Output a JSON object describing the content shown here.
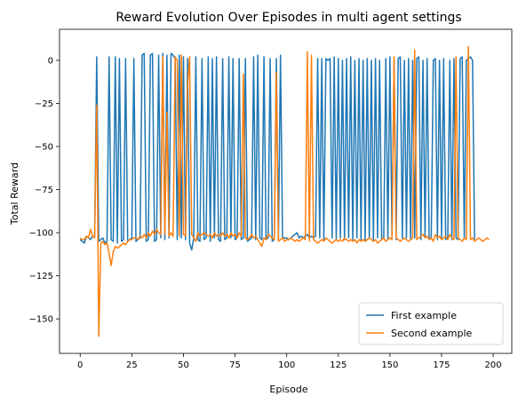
{
  "chart_data": {
    "type": "line",
    "title": "Reward Evolution Over Episodes in multi agent settings",
    "xlabel": "Episode",
    "ylabel": "Total Reward",
    "xlim": [
      -10,
      209
    ],
    "ylim": [
      -170,
      18
    ],
    "xticks": [
      0,
      25,
      50,
      75,
      100,
      125,
      150,
      175,
      200
    ],
    "yticks": [
      0,
      -25,
      -50,
      -75,
      -100,
      -125,
      -150
    ],
    "grid": false,
    "legend_position": "lower-right",
    "series": [
      {
        "name": "First example",
        "color": "#1f77b4",
        "values": [
          -104,
          -105,
          -106,
          -102,
          -103,
          -104,
          -102,
          -103,
          2,
          -105,
          -104,
          -103,
          -106,
          -105,
          2,
          -104,
          -105,
          2,
          -106,
          1,
          -105,
          -104,
          1,
          -105,
          -104,
          -103,
          1,
          -105,
          -104,
          -103,
          3,
          4,
          -105,
          -104,
          3,
          4,
          -105,
          -104,
          3,
          -103,
          4,
          -104,
          3,
          -103,
          4,
          3,
          1,
          -104,
          3,
          -103,
          2,
          -104,
          1,
          -106,
          -110,
          -103,
          2,
          -104,
          -105,
          1,
          -104,
          -103,
          2,
          -105,
          1,
          -103,
          2,
          -104,
          -105,
          1,
          -104,
          -103,
          2,
          -103,
          1,
          -104,
          -103,
          1,
          -104,
          -103,
          1,
          -105,
          -104,
          -103,
          2,
          -104,
          3,
          -103,
          -104,
          2,
          -104,
          -103,
          1,
          -105,
          -104,
          1,
          -104,
          3,
          -103,
          -103,
          -103,
          -104,
          -103,
          -102,
          -101,
          -100,
          -103,
          -102,
          -103,
          -102,
          -101,
          -103,
          -102,
          -103,
          -102,
          1,
          -103,
          1,
          -104,
          1,
          0,
          1,
          -103,
          2,
          -104,
          1,
          -103,
          0,
          -104,
          1,
          -103,
          2,
          -104,
          0,
          -103,
          1,
          -104,
          0,
          -105,
          1,
          -103,
          0,
          -104,
          1,
          -103,
          0,
          -104,
          -103,
          1,
          -104,
          2,
          -103,
          0,
          -104,
          1,
          2,
          -103,
          0,
          -103,
          1,
          -104,
          0,
          -103,
          1,
          2,
          -104,
          0,
          -103,
          1,
          -104,
          -103,
          0,
          1,
          -104,
          0,
          -103,
          1,
          -104,
          -103,
          0,
          -104,
          1,
          -103,
          -104,
          1,
          2,
          -103,
          0,
          1,
          2,
          0,
          -104
        ]
      },
      {
        "name": "Second example",
        "color": "#ff7f0e",
        "values": [
          -103,
          -104,
          -104,
          -102,
          -103,
          -98,
          -102,
          -103,
          -26,
          -160,
          -106,
          -105,
          -107,
          -106,
          -112,
          -119,
          -111,
          -108,
          -109,
          -108,
          -107,
          -106,
          -107,
          -105,
          -104,
          -104,
          -103,
          -103,
          -104,
          -102,
          -103,
          -101,
          -103,
          -100,
          -102,
          -99,
          -101,
          -98,
          -100,
          -101,
          2,
          -101,
          -30,
          -102,
          -100,
          -102,
          2,
          0,
          -102,
          3,
          -101,
          -102,
          -15,
          2,
          -101,
          -103,
          -105,
          -100,
          -102,
          -101,
          -100,
          -101,
          -102,
          -101,
          -103,
          -100,
          -102,
          -101,
          -102,
          -100,
          -102,
          -101,
          -103,
          -100,
          -102,
          -101,
          -103,
          -100,
          -102,
          -8,
          -103,
          -104,
          -103,
          -101,
          -103,
          -102,
          -104,
          -106,
          -108,
          -103,
          -104,
          -101,
          -102,
          -103,
          -104,
          -7,
          -105,
          -104,
          -103,
          -105,
          -104,
          -104,
          -103,
          -104,
          -105,
          -104,
          -105,
          -104,
          -103,
          -104,
          5,
          -105,
          3,
          -104,
          -105,
          -106,
          -105,
          -104,
          -105,
          -103,
          -104,
          -105,
          -106,
          -105,
          -104,
          -105,
          -104,
          -105,
          -103,
          -104,
          -105,
          -104,
          -105,
          -104,
          -106,
          -104,
          -105,
          -104,
          -105,
          -104,
          -103,
          -104,
          -105,
          -104,
          -106,
          -105,
          -104,
          -103,
          -105,
          -104,
          -103,
          -104,
          2,
          -103,
          -104,
          -105,
          -104,
          -103,
          -104,
          -105,
          -104,
          -103,
          6,
          -104,
          -103,
          -102,
          -101,
          -103,
          -102,
          -104,
          -103,
          -105,
          -101,
          -103,
          -102,
          -104,
          -103,
          -102,
          -104,
          -101,
          -103,
          -104,
          2,
          -103,
          -104,
          -105,
          -103,
          -104,
          8,
          -104,
          -103,
          -105,
          -104,
          -103,
          -104,
          -105,
          -104,
          -103,
          -104
        ]
      }
    ]
  }
}
